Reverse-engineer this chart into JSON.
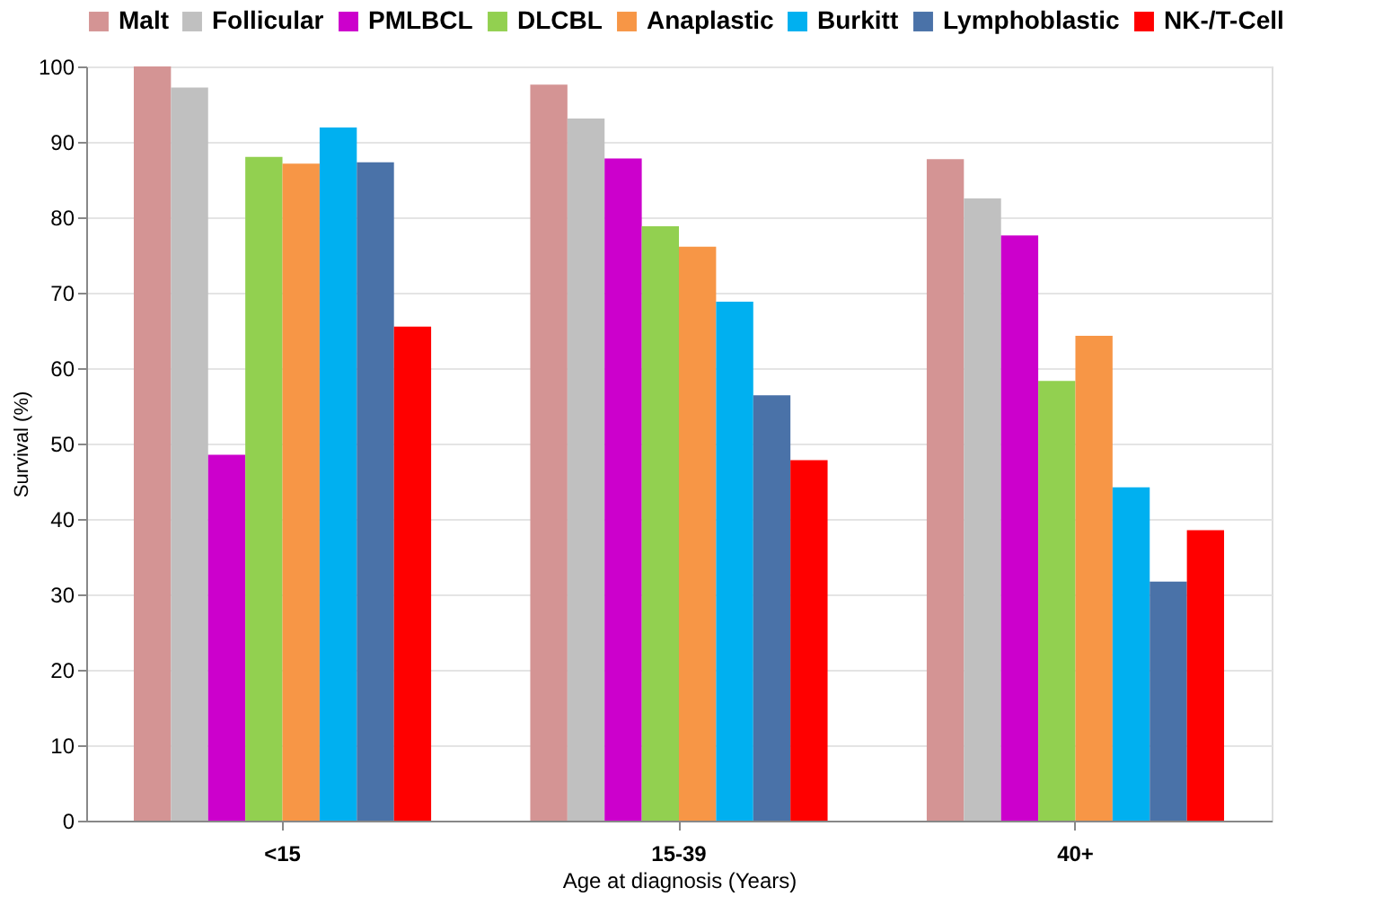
{
  "chart_data": {
    "type": "bar",
    "xlabel": "Age at  diagnosis (Years)",
    "ylabel": "Survival (%)",
    "categories": [
      "<15",
      "15-39",
      "40+"
    ],
    "series": [
      {
        "name": "Malt",
        "color": "#d49494",
        "values": [
          100,
          97.6,
          87.7
        ]
      },
      {
        "name": "Follicular",
        "color": "#c0c0c0",
        "values": [
          97.2,
          93.1,
          82.5
        ]
      },
      {
        "name": "PMLBCL",
        "color": "#cc00cc",
        "values": [
          48.5,
          87.8,
          77.6
        ]
      },
      {
        "name": "DLCBL",
        "color": "#92d050",
        "values": [
          88.0,
          78.8,
          58.3
        ]
      },
      {
        "name": "Anaplastic",
        "color": "#f79646",
        "values": [
          87.1,
          76.1,
          64.3
        ]
      },
      {
        "name": "Burkitt",
        "color": "#00b0f0",
        "values": [
          91.9,
          68.8,
          44.2
        ]
      },
      {
        "name": "Lymphoblastic",
        "color": "#4a72a8",
        "values": [
          87.3,
          56.4,
          31.7
        ]
      },
      {
        "name": "NK-/T-Cell",
        "color": "#ff0000",
        "values": [
          65.5,
          47.8,
          38.5
        ]
      }
    ],
    "ylim": [
      0,
      100
    ],
    "yticks": [
      0,
      10,
      20,
      30,
      40,
      50,
      60,
      70,
      80,
      90,
      100
    ],
    "grid": "y",
    "legend": "top"
  }
}
